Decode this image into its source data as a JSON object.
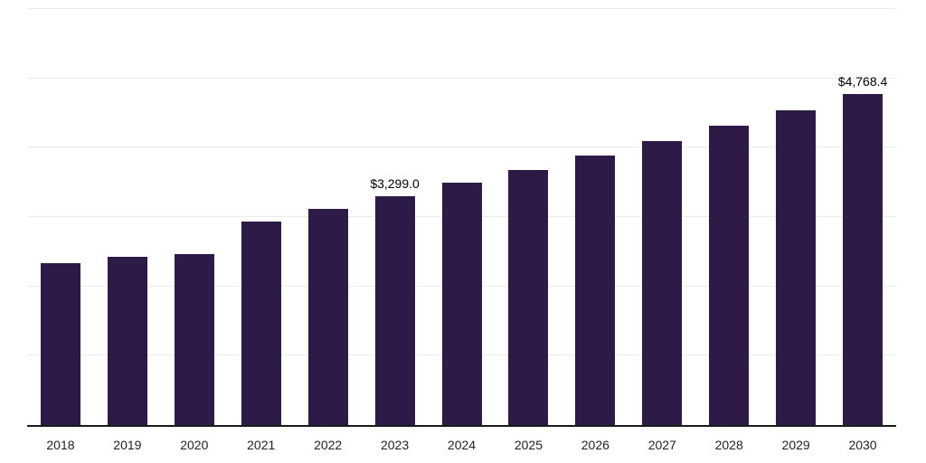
{
  "chart_data": {
    "type": "bar",
    "title": "",
    "xlabel": "",
    "ylabel": "",
    "categories": [
      "2018",
      "2019",
      "2020",
      "2021",
      "2022",
      "2023",
      "2024",
      "2025",
      "2026",
      "2027",
      "2028",
      "2029",
      "2030"
    ],
    "values": [
      2340,
      2430,
      2470,
      2930,
      3120,
      3299.0,
      3490,
      3680,
      3890,
      4090,
      4320,
      4540,
      4768.4
    ],
    "data_labels": {
      "2023": "$3,299.0",
      "2030": "$4,768.4"
    },
    "ylim": [
      0,
      6000
    ],
    "grid": true,
    "gridline_interval": 1000,
    "legend": "none",
    "bar_color": "#2e1a47",
    "axis_color": "#1a1a1a",
    "gridline_color": "#ececec",
    "data_label_color": "#000000",
    "tick_label_color": "#222222"
  }
}
